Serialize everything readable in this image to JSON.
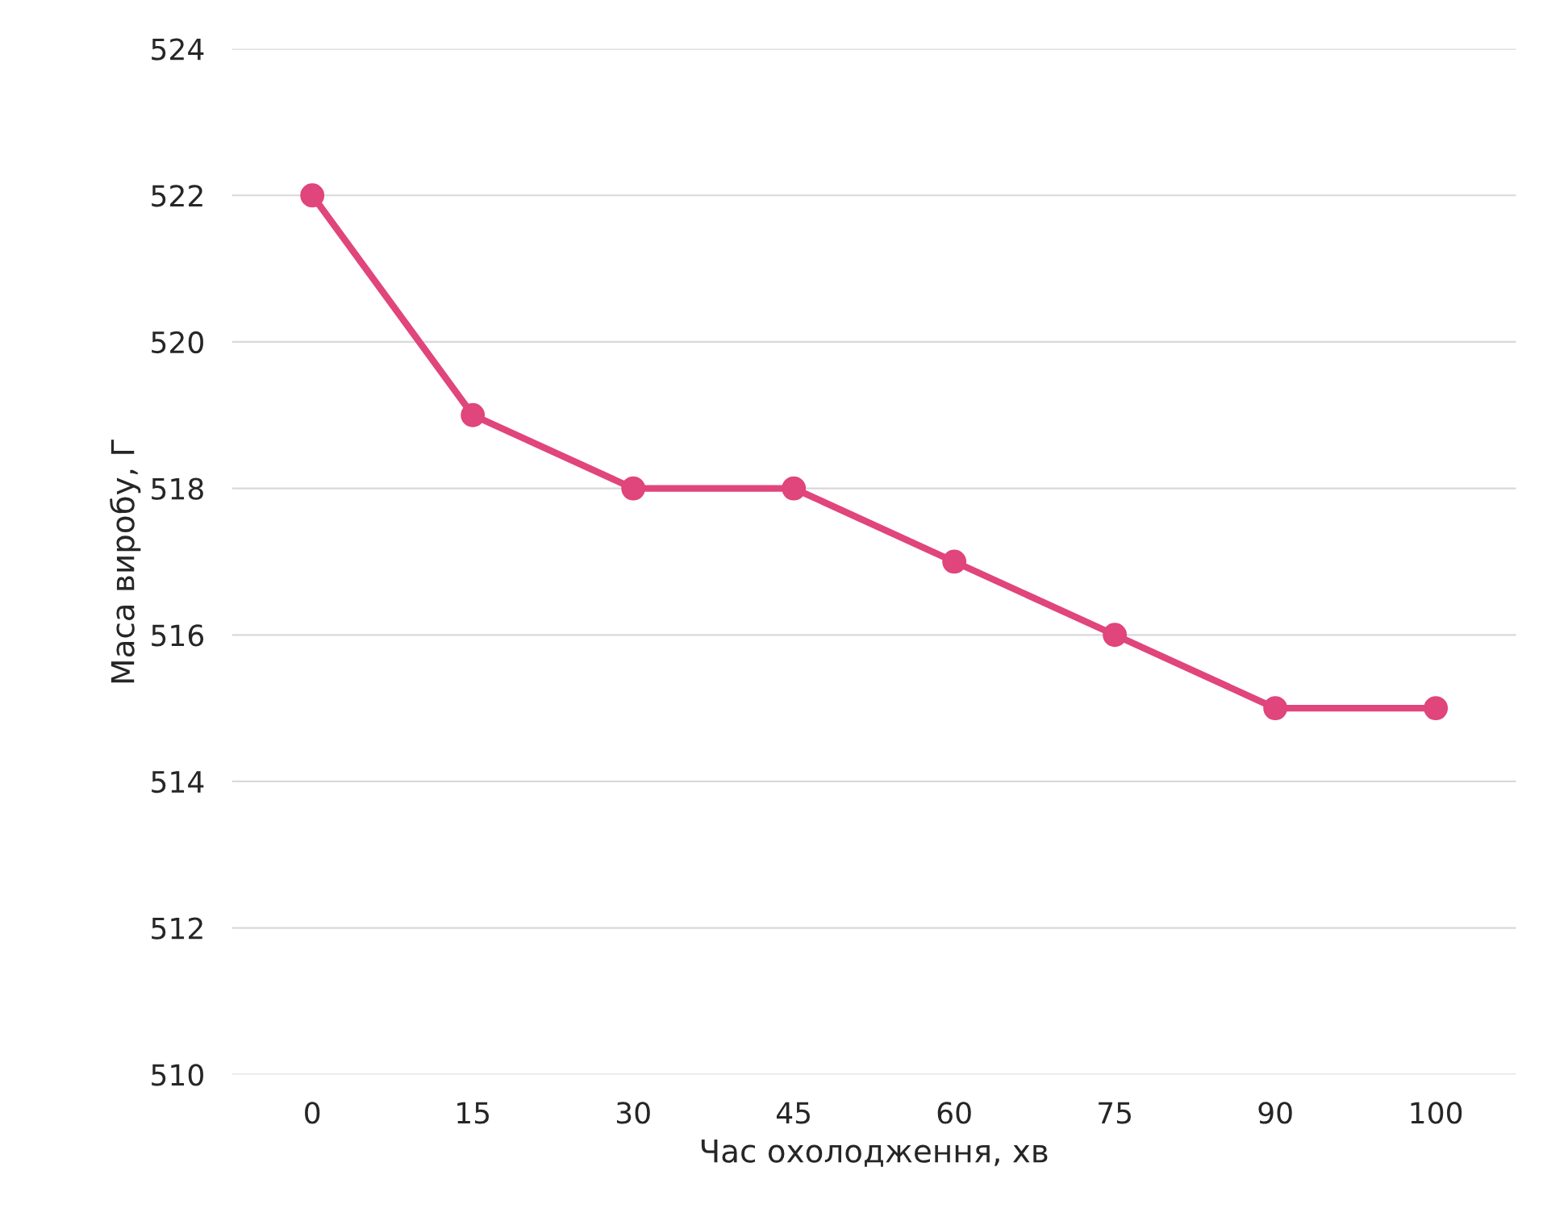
{
  "chart_data": {
    "type": "line",
    "xlabel": "Час охолодження, хв",
    "ylabel": "Маса виробу, Г",
    "categories": [
      "0",
      "15",
      "30",
      "45",
      "60",
      "75",
      "90",
      "100"
    ],
    "series": [
      {
        "color": "#e0457b",
        "values": [
          522,
          519,
          518,
          518,
          517,
          516,
          515,
          515
        ]
      }
    ],
    "ylim": [
      510,
      524
    ],
    "yticks": [
      510,
      512,
      514,
      516,
      518,
      520,
      522,
      524
    ],
    "grid": "y",
    "marker": "circle",
    "line_style": "solid"
  }
}
